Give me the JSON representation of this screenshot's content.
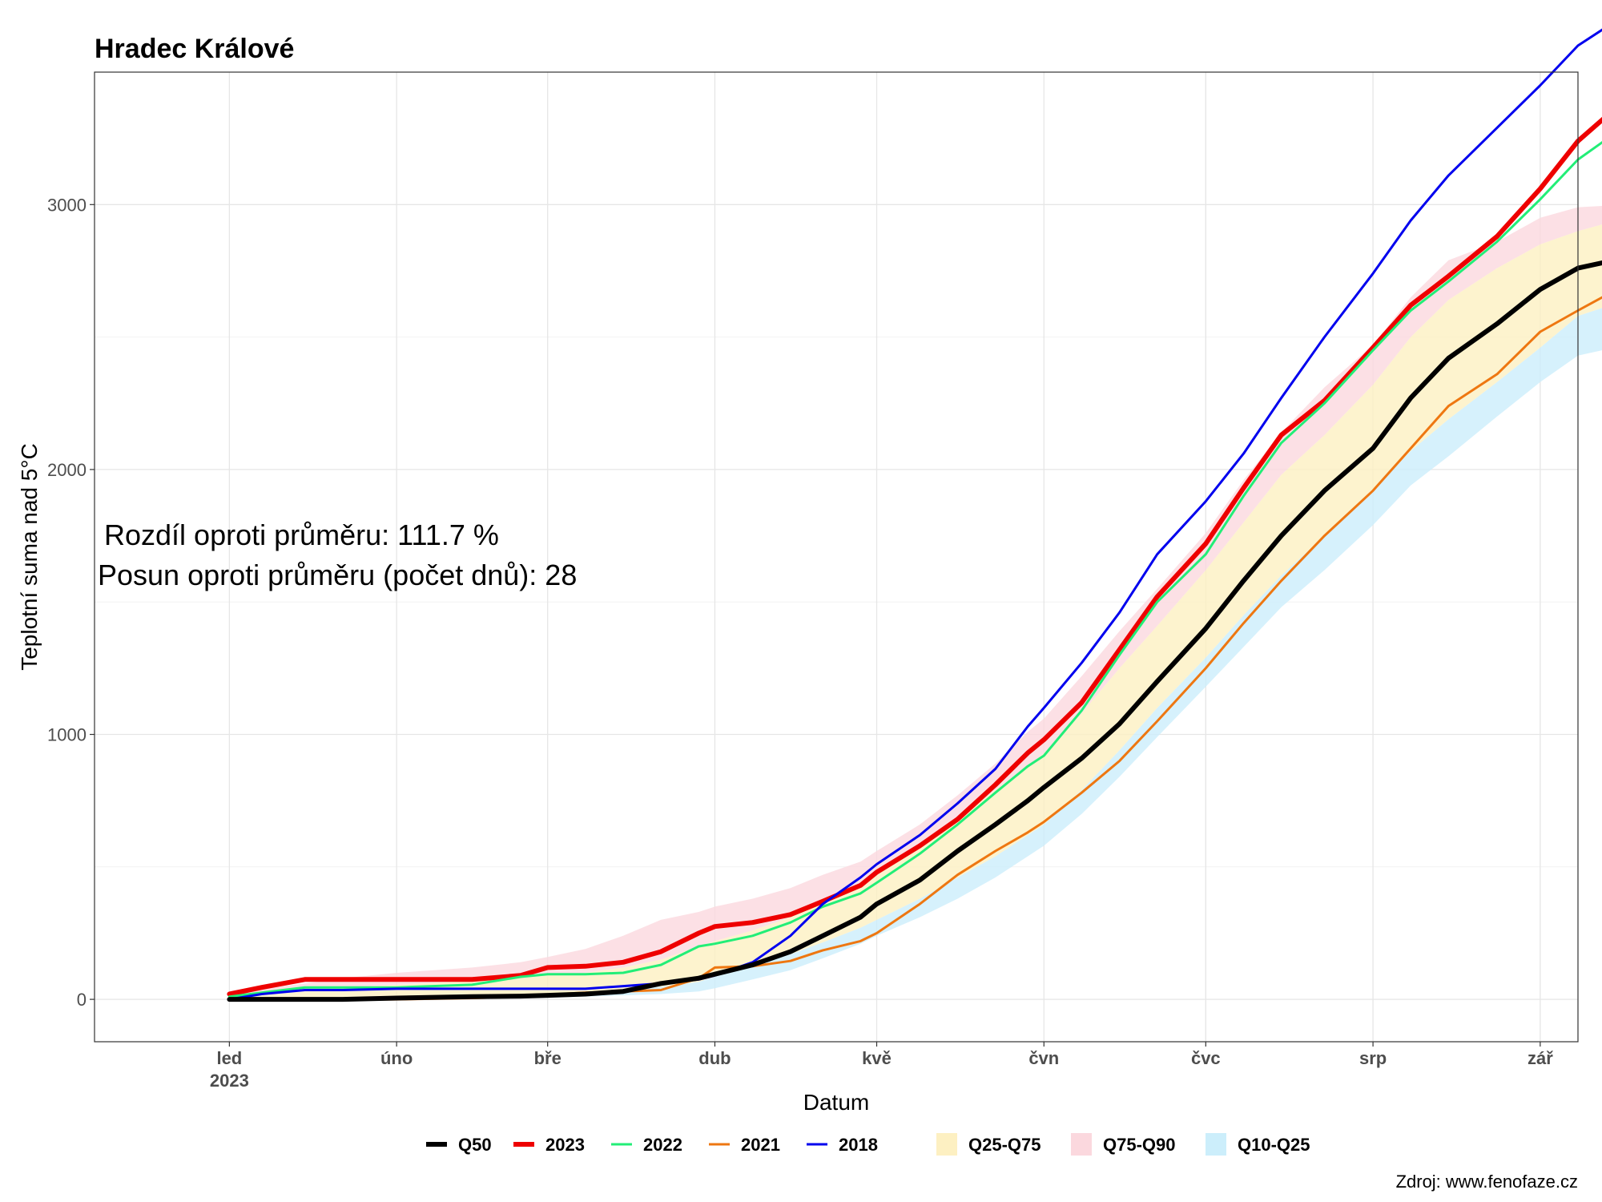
{
  "chart_data": {
    "type": "line",
    "title": "Hradec Králové",
    "xlabel": "Datum",
    "ylabel": "Teplotní suma nad 5°C",
    "ylim": [
      -160,
      3500
    ],
    "xlim_day": [
      -25,
      250
    ],
    "y_ticks": [
      0,
      1000,
      2000,
      3000
    ],
    "x_ticks": [
      {
        "day": 0,
        "label": "led",
        "label2": "2023"
      },
      {
        "day": 31,
        "label": "úno"
      },
      {
        "day": 59,
        "label": "bře"
      },
      {
        "day": 90,
        "label": "dub"
      },
      {
        "day": 120,
        "label": "kvě"
      },
      {
        "day": 151,
        "label": "čvn"
      },
      {
        "day": 181,
        "label": "čvc"
      },
      {
        "day": 212,
        "label": "srp"
      },
      {
        "day": 243,
        "label": "zář"
      }
    ],
    "x": [
      0,
      6,
      14,
      21,
      31,
      45,
      54,
      59,
      66,
      73,
      80,
      87,
      90,
      97,
      104,
      110,
      117,
      120,
      128,
      135,
      142,
      148,
      151,
      158,
      165,
      172,
      181,
      188,
      195,
      203,
      212,
      219,
      226,
      235,
      243,
      250,
      259
    ],
    "bands": [
      {
        "name": "Q10-Q25",
        "color": "#cceefb",
        "lower": [
          0,
          0,
          0,
          0,
          0,
          2,
          4,
          6,
          10,
          15,
          20,
          30,
          42,
          75,
          110,
          155,
          210,
          240,
          310,
          380,
          460,
          540,
          580,
          700,
          840,
          990,
          1180,
          1330,
          1480,
          1620,
          1790,
          1940,
          2050,
          2200,
          2330,
          2430,
          2470
        ],
        "upper": [
          0,
          0,
          2,
          3,
          5,
          10,
          14,
          18,
          26,
          36,
          48,
          66,
          85,
          125,
          170,
          215,
          270,
          300,
          380,
          460,
          540,
          620,
          660,
          790,
          940,
          1100,
          1290,
          1450,
          1600,
          1750,
          1920,
          2070,
          2190,
          2330,
          2460,
          2580,
          2640
        ]
      },
      {
        "name": "Q25-Q75",
        "color": "#fdf0c2",
        "lower": [
          0,
          0,
          2,
          3,
          5,
          10,
          14,
          18,
          26,
          36,
          48,
          66,
          85,
          125,
          170,
          215,
          270,
          300,
          380,
          460,
          540,
          620,
          660,
          790,
          940,
          1100,
          1290,
          1450,
          1600,
          1750,
          1920,
          2070,
          2190,
          2330,
          2460,
          2580,
          2640
        ],
        "upper": [
          10,
          20,
          30,
          45,
          55,
          70,
          80,
          90,
          100,
          120,
          150,
          200,
          220,
          260,
          310,
          370,
          430,
          480,
          570,
          680,
          790,
          880,
          930,
          1080,
          1250,
          1410,
          1620,
          1800,
          1980,
          2130,
          2320,
          2500,
          2640,
          2760,
          2850,
          2900,
          2950
        ]
      },
      {
        "name": "Q75-Q90",
        "color": "#fbd8de",
        "lower": [
          10,
          20,
          30,
          45,
          55,
          70,
          80,
          90,
          100,
          120,
          150,
          200,
          220,
          260,
          310,
          370,
          430,
          480,
          570,
          680,
          790,
          880,
          930,
          1080,
          1250,
          1410,
          1620,
          1800,
          1980,
          2130,
          2320,
          2500,
          2640,
          2760,
          2850,
          2900,
          2950
        ],
        "upper": [
          25,
          40,
          60,
          80,
          100,
          120,
          140,
          160,
          190,
          240,
          300,
          330,
          350,
          380,
          420,
          470,
          520,
          560,
          660,
          770,
          890,
          1010,
          1060,
          1220,
          1390,
          1550,
          1760,
          1960,
          2140,
          2310,
          2470,
          2650,
          2790,
          2860,
          2950,
          2990,
          3000
        ]
      }
    ],
    "series": [
      {
        "name": "Q50",
        "color": "#000000",
        "width": 6,
        "values": [
          0,
          0,
          0,
          0,
          5,
          10,
          12,
          15,
          20,
          30,
          60,
          80,
          95,
          130,
          180,
          240,
          310,
          360,
          450,
          560,
          660,
          750,
          800,
          910,
          1040,
          1200,
          1400,
          1580,
          1750,
          1920,
          2080,
          2270,
          2420,
          2550,
          2680,
          2760,
          2800
        ]
      },
      {
        "name": "2023",
        "color": "#ee0000",
        "width": 6,
        "values": [
          20,
          45,
          75,
          75,
          75,
          75,
          90,
          120,
          125,
          140,
          180,
          250,
          275,
          290,
          320,
          370,
          430,
          480,
          580,
          680,
          810,
          930,
          980,
          1120,
          1320,
          1520,
          1720,
          1930,
          2130,
          2260,
          2460,
          2620,
          2730,
          2880,
          3060,
          3240,
          3400
        ]
      },
      {
        "name": "2022",
        "color": "#22ee77",
        "width": 3,
        "values": [
          10,
          25,
          45,
          45,
          45,
          55,
          85,
          95,
          95,
          100,
          130,
          200,
          210,
          240,
          290,
          350,
          400,
          440,
          550,
          660,
          780,
          880,
          920,
          1090,
          1300,
          1500,
          1680,
          1900,
          2100,
          2250,
          2450,
          2600,
          2710,
          2860,
          3020,
          3170,
          3300
        ]
      },
      {
        "name": "2021",
        "color": "#ee7711",
        "width": 3,
        "values": [
          0,
          0,
          0,
          0,
          0,
          5,
          10,
          18,
          25,
          30,
          35,
          80,
          120,
          125,
          145,
          185,
          220,
          250,
          360,
          470,
          560,
          630,
          670,
          780,
          900,
          1050,
          1250,
          1420,
          1580,
          1750,
          1920,
          2080,
          2240,
          2360,
          2520,
          2600,
          2700
        ]
      },
      {
        "name": "2018",
        "color": "#0000ee",
        "width": 3,
        "values": [
          0,
          20,
          35,
          35,
          40,
          40,
          40,
          40,
          40,
          50,
          60,
          75,
          90,
          140,
          240,
          360,
          460,
          510,
          620,
          740,
          870,
          1030,
          1100,
          1270,
          1460,
          1680,
          1880,
          2060,
          2270,
          2500,
          2740,
          2940,
          3110,
          3290,
          3450,
          3600,
          3720
        ]
      }
    ],
    "legend": [
      {
        "label": "Q50",
        "kind": "line",
        "color": "#000000"
      },
      {
        "label": "2023",
        "kind": "line",
        "color": "#ee0000"
      },
      {
        "label": "2022",
        "kind": "line",
        "color": "#22ee77"
      },
      {
        "label": "2021",
        "kind": "line",
        "color": "#ee7711"
      },
      {
        "label": "2018",
        "kind": "line",
        "color": "#0000ee"
      },
      {
        "label": "Q25-Q75",
        "kind": "fill",
        "color": "#fdf0c2"
      },
      {
        "label": "Q75-Q90",
        "kind": "fill",
        "color": "#fbd8de"
      },
      {
        "label": "Q10-Q25",
        "kind": "fill",
        "color": "#cceefb"
      }
    ],
    "legend_position": "bottom",
    "grid": true,
    "annotations": [
      "Rozdíl oproti průměru: 111.7 %",
      "Posun oproti průměru (počet dnů): 28"
    ],
    "source": "Zdroj: www.fenofaze.cz"
  }
}
